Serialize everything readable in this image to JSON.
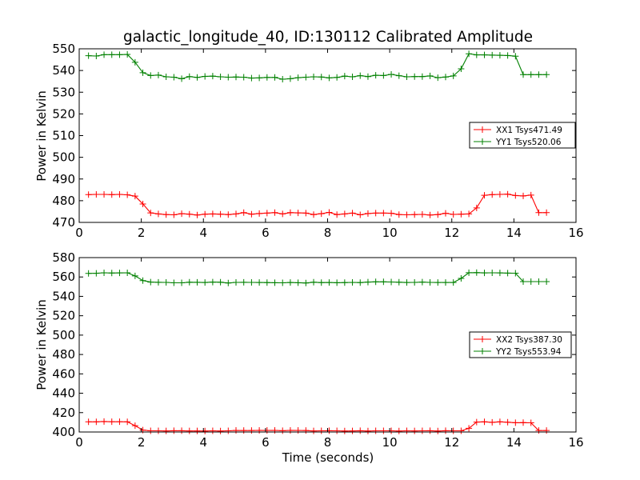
{
  "chart_data": [
    {
      "type": "line",
      "title": "galactic_longitude_40, ID:130112 Calibrated Amplitude",
      "xlabel": "",
      "ylabel": "Power in Kelvin",
      "xlim": [
        0,
        16
      ],
      "ylim": [
        470,
        550
      ],
      "xticks": [
        "0",
        "2",
        "4",
        "6",
        "8",
        "10",
        "12",
        "14",
        "16"
      ],
      "yticks": [
        "470",
        "480",
        "490",
        "500",
        "510",
        "520",
        "530",
        "540",
        "550"
      ],
      "legend_position": "center-right",
      "grid": false,
      "x": [
        0.3,
        0.55,
        0.8,
        1.05,
        1.3,
        1.55,
        1.8,
        2.05,
        2.3,
        2.55,
        2.8,
        3.05,
        3.3,
        3.55,
        3.8,
        4.05,
        4.3,
        4.55,
        4.8,
        5.05,
        5.3,
        5.55,
        5.8,
        6.05,
        6.3,
        6.55,
        6.8,
        7.05,
        7.3,
        7.55,
        7.8,
        8.05,
        8.3,
        8.55,
        8.8,
        9.05,
        9.3,
        9.55,
        9.8,
        10.05,
        10.3,
        10.55,
        10.8,
        11.05,
        11.3,
        11.55,
        11.8,
        12.05,
        12.3,
        12.55,
        12.8,
        13.05,
        13.3,
        13.55,
        13.8,
        14.05,
        14.3,
        14.55,
        14.8,
        15.05
      ],
      "series": [
        {
          "name": "XX1 Tsys471.49",
          "color": "#ff0000",
          "values": [
            482.8,
            482.9,
            482.9,
            482.8,
            482.9,
            482.7,
            482.1,
            478.5,
            474.4,
            473.9,
            473.6,
            473.5,
            474.0,
            473.8,
            473.4,
            473.8,
            473.9,
            473.8,
            473.6,
            473.9,
            474.5,
            473.8,
            474.1,
            474.3,
            474.5,
            473.9,
            474.5,
            474.4,
            474.3,
            473.6,
            474.0,
            474.6,
            473.6,
            473.9,
            474.3,
            473.5,
            474.1,
            474.3,
            474.3,
            474.2,
            473.6,
            473.5,
            473.6,
            473.7,
            473.4,
            473.6,
            474.2,
            473.7,
            473.8,
            473.9,
            476.7,
            482.5,
            482.8,
            482.9,
            483.0,
            482.4,
            482.2,
            482.6,
            474.5,
            474.5
          ]
        },
        {
          "name": "YY1 Tsys520.06",
          "color": "#008000",
          "values": [
            546.8,
            546.7,
            547.3,
            547.3,
            547.3,
            547.4,
            543.8,
            539.0,
            537.7,
            537.9,
            537.1,
            536.9,
            536.2,
            537.2,
            536.8,
            537.3,
            537.4,
            537.1,
            536.9,
            537.0,
            536.9,
            536.5,
            536.6,
            536.8,
            536.8,
            536.0,
            536.2,
            536.7,
            536.9,
            537.1,
            537.0,
            536.6,
            536.8,
            537.4,
            537.1,
            537.6,
            537.2,
            537.8,
            537.7,
            538.2,
            537.6,
            537.1,
            537.2,
            537.2,
            537.5,
            536.7,
            537.0,
            537.5,
            540.8,
            547.7,
            547.2,
            547.2,
            547.1,
            547.0,
            546.9,
            546.6,
            538.1,
            538.1,
            538.1,
            538.1
          ]
        }
      ]
    },
    {
      "type": "line",
      "title": "",
      "xlabel": "Time (seconds)",
      "ylabel": "Power in Kelvin",
      "xlim": [
        0,
        16
      ],
      "ylim": [
        400,
        580
      ],
      "xticks": [
        "0",
        "2",
        "4",
        "6",
        "8",
        "10",
        "12",
        "14",
        "16"
      ],
      "yticks": [
        "400",
        "420",
        "440",
        "460",
        "480",
        "500",
        "520",
        "540",
        "560",
        "580"
      ],
      "legend_position": "center-right",
      "grid": false,
      "x": [
        0.3,
        0.55,
        0.8,
        1.05,
        1.3,
        1.55,
        1.8,
        2.05,
        2.3,
        2.55,
        2.8,
        3.05,
        3.3,
        3.55,
        3.8,
        4.05,
        4.3,
        4.55,
        4.8,
        5.05,
        5.3,
        5.55,
        5.8,
        6.05,
        6.3,
        6.55,
        6.8,
        7.05,
        7.3,
        7.55,
        7.8,
        8.05,
        8.3,
        8.55,
        8.8,
        9.05,
        9.3,
        9.55,
        9.8,
        10.05,
        10.3,
        10.55,
        10.8,
        11.05,
        11.3,
        11.55,
        11.8,
        12.05,
        12.3,
        12.55,
        12.8,
        13.05,
        13.3,
        13.55,
        13.8,
        14.05,
        14.3,
        14.55,
        14.8,
        15.05
      ],
      "series": [
        {
          "name": "XX2 Tsys387.30",
          "color": "#ff0000",
          "values": [
            410.5,
            410.5,
            410.8,
            410.6,
            410.6,
            410.5,
            406.5,
            402.0,
            401.2,
            401.2,
            401.1,
            401.3,
            401.3,
            401.1,
            401.1,
            401.0,
            401.2,
            401.0,
            401.2,
            401.6,
            401.5,
            401.5,
            401.7,
            401.6,
            401.7,
            401.3,
            401.7,
            401.6,
            401.5,
            401.1,
            401.2,
            401.3,
            401.2,
            401.0,
            401.1,
            401.3,
            401.0,
            401.2,
            401.2,
            401.2,
            401.0,
            401.2,
            401.1,
            401.2,
            401.3,
            401.0,
            401.3,
            401.2,
            401.2,
            403.8,
            410.2,
            410.5,
            410.0,
            410.5,
            410.1,
            409.6,
            409.7,
            409.5,
            401.5,
            401.5
          ]
        },
        {
          "name": "YY2 Tsys553.94",
          "color": "#008000",
          "values": [
            563.7,
            563.8,
            564.3,
            564.1,
            564.2,
            564.3,
            561.1,
            556.3,
            554.7,
            554.5,
            554.4,
            554.0,
            554.0,
            554.6,
            554.5,
            554.3,
            554.7,
            554.6,
            553.8,
            554.4,
            554.5,
            554.4,
            554.3,
            554.2,
            554.1,
            554.0,
            554.3,
            554.1,
            553.8,
            554.6,
            554.2,
            554.3,
            554.1,
            554.2,
            554.4,
            554.2,
            554.7,
            555.0,
            555.0,
            554.8,
            554.6,
            554.3,
            554.4,
            554.7,
            554.4,
            554.3,
            554.3,
            554.3,
            558.5,
            564.4,
            564.5,
            564.2,
            564.3,
            564.2,
            564.0,
            563.9,
            555.2,
            555.2,
            555.2,
            555.2
          ]
        }
      ]
    }
  ]
}
